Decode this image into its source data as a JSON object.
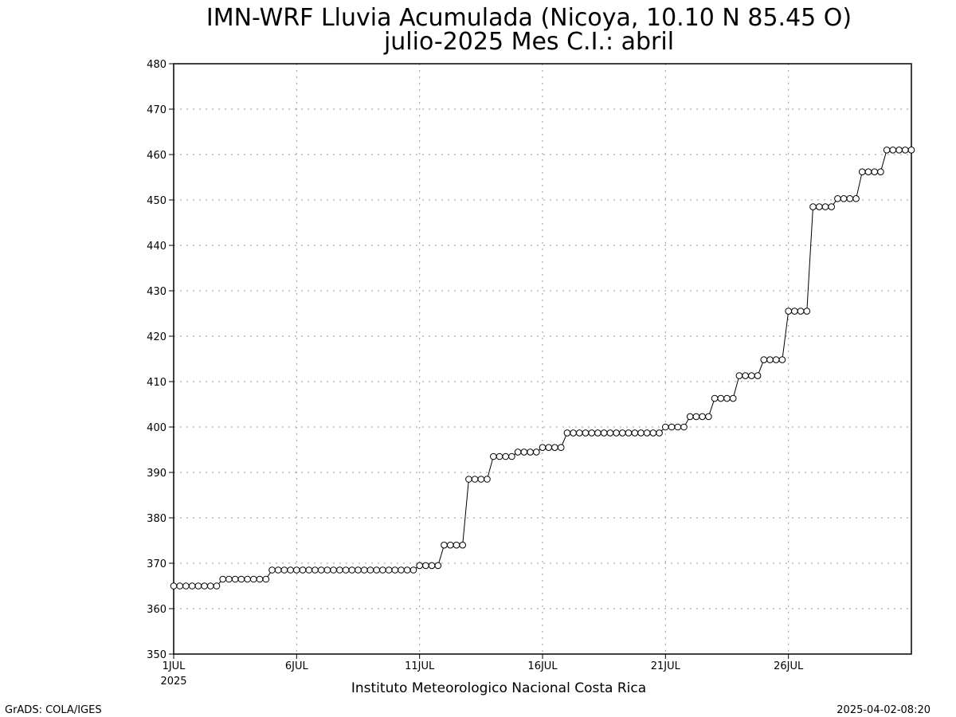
{
  "chart_data": {
    "type": "line",
    "title_line1": "IMN-WRF  Lluvia Acumulada  (Nicoya, 10.10  N 85.45  O)",
    "title_line2": "julio-2025 Mes C.I.: abril",
    "xlabel": "Instituto Meteorologico Nacional Costa Rica",
    "ylabel": "",
    "x_unit": "day of July 2025 (6-hourly steps)",
    "ylim": [
      350,
      480
    ],
    "yticks": [
      350,
      360,
      370,
      380,
      390,
      400,
      410,
      420,
      430,
      440,
      450,
      460,
      470,
      480
    ],
    "xlim": [
      1,
      31
    ],
    "xticks": [
      {
        "x": 1,
        "label": "1JUL"
      },
      {
        "x": 6,
        "label": "6JUL"
      },
      {
        "x": 11,
        "label": "11JUL"
      },
      {
        "x": 16,
        "label": "16JUL"
      },
      {
        "x": 21,
        "label": "21JUL"
      },
      {
        "x": 26,
        "label": "26JUL"
      }
    ],
    "year_label": "2025",
    "grid": true,
    "marker": "open-circle",
    "line_color": "#000000",
    "series": [
      {
        "values": [
          365,
          365,
          365,
          365,
          365,
          365,
          365,
          365,
          366.5,
          366.5,
          366.5,
          366.5,
          366.5,
          366.5,
          366.5,
          366.5,
          368.5,
          368.5,
          368.5,
          368.5,
          368.5,
          368.5,
          368.5,
          368.5,
          368.5,
          368.5,
          368.5,
          368.5,
          368.5,
          368.5,
          368.5,
          368.5,
          368.5,
          368.5,
          368.5,
          368.5,
          368.5,
          368.5,
          368.5,
          368.5,
          369.5,
          369.5,
          369.5,
          369.5,
          374,
          374,
          374,
          374,
          388.5,
          388.5,
          388.5,
          388.5,
          393.5,
          393.5,
          393.5,
          393.5,
          394.5,
          394.5,
          394.5,
          394.5,
          395.5,
          395.5,
          395.5,
          395.5,
          398.7,
          398.7,
          398.7,
          398.7,
          398.7,
          398.7,
          398.7,
          398.7,
          398.7,
          398.7,
          398.7,
          398.7,
          398.7,
          398.7,
          398.7,
          398.7,
          400,
          400,
          400,
          400,
          402.3,
          402.3,
          402.3,
          402.3,
          406.3,
          406.3,
          406.3,
          406.3,
          411.3,
          411.3,
          411.3,
          411.3,
          414.8,
          414.8,
          414.8,
          414.8,
          425.5,
          425.5,
          425.5,
          425.5,
          448.5,
          448.5,
          448.5,
          448.5,
          450.3,
          450.3,
          450.3,
          450.3,
          456.2,
          456.2,
          456.2,
          456.2,
          461,
          461,
          461,
          461,
          461
        ]
      }
    ]
  },
  "footer": {
    "left": "GrADS: COLA/IGES",
    "right": "2025-04-02-08:20"
  }
}
